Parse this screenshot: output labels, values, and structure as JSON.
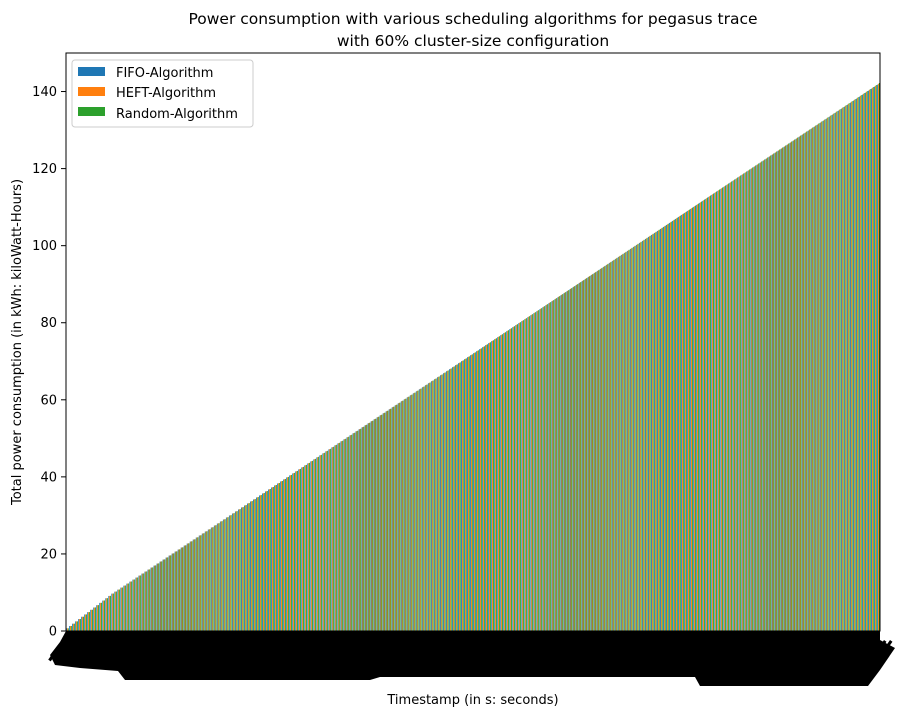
{
  "chart_data": {
    "type": "bar",
    "title_line1": "Power consumption with various scheduling algorithms for pegasus trace",
    "title_line2": "with 60% cluster-size configuration",
    "xlabel": "Timestamp (in s: seconds)",
    "ylabel": "Total power consumption (in kWh: kiloWatt-Hours)",
    "ylim": [
      0,
      150
    ],
    "yticks": [
      0,
      20,
      40,
      60,
      80,
      100,
      120,
      140
    ],
    "grid": false,
    "legend_position": "top-left",
    "x_tick_labels": "illegible (dense overlapping rotated timestamps)",
    "category_count": 270,
    "value_start": 0.7,
    "value_end": 142,
    "series": [
      {
        "name": "FIFO-Algorithm",
        "color": "#1f77b4"
      },
      {
        "name": "HEFT-Algorithm",
        "color": "#ff7f0e"
      },
      {
        "name": "Random-Algorithm",
        "color": "#2ca02c"
      }
    ]
  }
}
